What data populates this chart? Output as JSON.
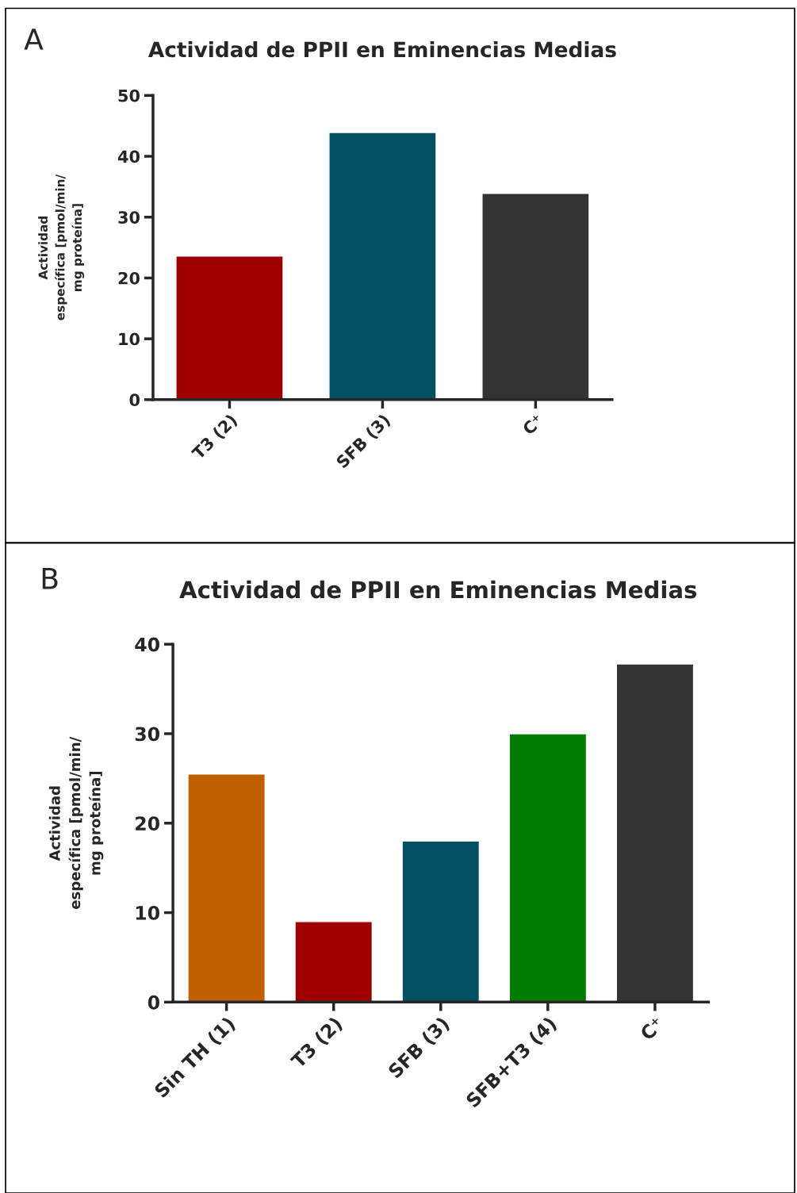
{
  "chart_data": [
    {
      "type": "bar",
      "title": "Actividad de PPII en Eminencias Medias",
      "ylabel": "Actividad\nespecífica [pmol/min/\nmg proteína]",
      "annotations": [
        "A"
      ],
      "categories": [
        "T3 (2)",
        "SFB (3)",
        "C⁺"
      ],
      "values": [
        23.6,
        43.9,
        33.9
      ],
      "colors": [
        "#9e0000",
        "#034f63",
        "#333333"
      ],
      "ylim": [
        0,
        50
      ],
      "yticks": [
        0,
        10,
        20,
        30,
        40,
        50
      ],
      "grid": false,
      "legend": false
    },
    {
      "type": "bar",
      "title": "Actividad de PPII en Eminencias Medias",
      "ylabel": "Actividad\nespecífica [pmol/min/\nmg proteína]",
      "annotations": [
        "B"
      ],
      "categories": [
        "Sin TH (1)",
        "T3 (2)",
        "SFB (3)",
        "SFB+T3 (4)",
        "C⁺"
      ],
      "values": [
        25.5,
        9.0,
        18.0,
        30.0,
        37.8
      ],
      "colors": [
        "#c06000",
        "#9e0000",
        "#034f63",
        "#007d00",
        "#333333"
      ],
      "ylim": [
        0,
        40
      ],
      "yticks": [
        0,
        10,
        20,
        30,
        40
      ],
      "grid": false,
      "legend": false
    }
  ]
}
